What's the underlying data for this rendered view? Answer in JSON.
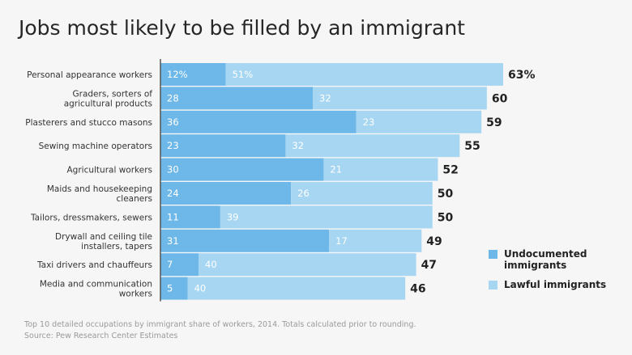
{
  "title": "Jobs most likely to be filled by an immigrant",
  "footnote": "Top 10 detailed occupations by immigrant share of workers, 2014. Totals calculated prior to rounding.",
  "source": "Source: Pew Research Center Estimates",
  "colors": {
    "undocumented": "#6db8e8",
    "lawful": "#a6d6f2",
    "axis": "#555555",
    "label": "#333333",
    "inner_text": "#ffffff",
    "total_text": "#222222"
  },
  "legend": {
    "undocumented": "Undocumented\nimmigrants",
    "lawful": "Lawful immigrants"
  },
  "chart_data": {
    "type": "bar",
    "orientation": "horizontal",
    "stacked": true,
    "title": "Jobs most likely to be filled by an immigrant",
    "xlabel": "",
    "ylabel": "",
    "xlim": [
      0,
      63
    ],
    "grid": false,
    "legend_position": "right",
    "categories": [
      "Personal appearance workers",
      "Graders, sorters of\nagricultural products",
      "Plasterers and stucco masons",
      "Sewing machine operators",
      "Agricultural workers",
      "Maids and housekeeping\ncleaners",
      "Tailors, dressmakers, sewers",
      "Drywall and ceiling tile\ninstallers, tapers",
      "Taxi drivers and chauffeurs",
      "Media and communication\nworkers"
    ],
    "series": [
      {
        "name": "Undocumented immigrants",
        "values": [
          12,
          28,
          36,
          23,
          30,
          24,
          11,
          31,
          7,
          5
        ],
        "labels": [
          "12%",
          "28",
          "36",
          "23",
          "30",
          "24",
          "11",
          "31",
          "7",
          "5"
        ]
      },
      {
        "name": "Lawful immigrants",
        "values": [
          51,
          32,
          23,
          32,
          21,
          26,
          39,
          17,
          40,
          40
        ],
        "labels": [
          "51%",
          "32",
          "23",
          "32",
          "21",
          "26",
          "39",
          "17",
          "40",
          "40"
        ]
      }
    ],
    "totals": [
      63,
      60,
      59,
      55,
      52,
      50,
      50,
      49,
      47,
      46
    ],
    "total_labels": [
      "63%",
      "60",
      "59",
      "55",
      "52",
      "50",
      "50",
      "49",
      "47",
      "46"
    ]
  }
}
